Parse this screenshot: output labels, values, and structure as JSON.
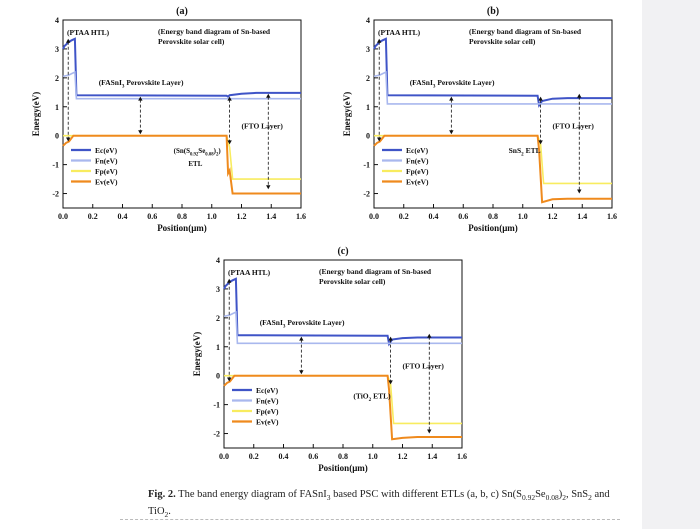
{
  "colors": {
    "ec": "#3f54c7",
    "fn": "#a9b8ee",
    "fp": "#f8ec5f",
    "ev": "#ef8a1d",
    "axis": "#111111",
    "page_bg": "#ffffff",
    "side_bg": "#f1f1f3"
  },
  "chart_data": [
    {
      "type": "line",
      "panel": "(a)",
      "title": "(Energy band diagram of Sn-based Perovskite solar cell)",
      "xlabel": "Position(μm)",
      "ylabel": "Energy(eV)",
      "xlim": [
        0,
        1.6
      ],
      "ylim": [
        -2.5,
        4
      ],
      "xticks": [
        "0.0",
        "0.2",
        "0.4",
        "0.6",
        "0.8",
        "1.0",
        "1.2",
        "1.4",
        "1.6"
      ],
      "yticks": [
        "-2",
        "-1",
        "0",
        "1",
        "2",
        "3",
        "4"
      ],
      "legend": [
        "Ec(eV)",
        "Fn(eV)",
        "Fp(eV)",
        "Ev(eV)"
      ],
      "annotations": {
        "htl": "(PTAA HTL)",
        "perovskite_pre": "(FASnI",
        "perovskite_sub": "3",
        "perovskite_post": " Perovskite Layer)",
        "fto": "(FTO Layer)",
        "etl_a": "(Sn(S",
        "etl_b": "0.92",
        "etl_c": "Se",
        "etl_d": "0.08",
        "etl_e": ")",
        "etl_f": "2",
        "etl_g": ")",
        "etl2": "ETL"
      },
      "series": [
        {
          "name": "Ec(eV)",
          "x": [
            0,
            0.01,
            0.02,
            0.03,
            0.04,
            0.06,
            0.08,
            0.09,
            1.1,
            1.11,
            1.12,
            1.2,
            1.3,
            1.6
          ],
          "y": [
            3.0,
            3.1,
            3.15,
            3.2,
            3.25,
            3.3,
            3.35,
            1.4,
            1.38,
            1.35,
            1.4,
            1.45,
            1.48,
            1.48
          ]
        },
        {
          "name": "Fn(eV)",
          "x": [
            0,
            0.04,
            0.06,
            0.08,
            0.09,
            1.6
          ],
          "y": [
            2.05,
            2.1,
            2.15,
            2.2,
            1.28,
            1.28
          ]
        },
        {
          "name": "Fp(eV)",
          "x": [
            0,
            0.07,
            1.1,
            1.12,
            1.14,
            1.6
          ],
          "y": [
            0.0,
            0.0,
            0.0,
            -0.4,
            -1.5,
            -1.5
          ]
        },
        {
          "name": "Ev(eV)",
          "x": [
            0,
            0.01,
            0.02,
            0.04,
            0.07,
            1.1,
            1.11,
            1.12,
            1.14,
            1.6
          ],
          "y": [
            -0.35,
            -0.3,
            -0.25,
            -0.2,
            0.0,
            0.0,
            -1.3,
            -1.2,
            -2.0,
            -2.0
          ]
        }
      ]
    },
    {
      "type": "line",
      "panel": "(b)",
      "title": "(Energy band diagram of Sn-based Perovskite solar cell)",
      "xlabel": "Position(μm)",
      "ylabel": "Energy(eV)",
      "xlim": [
        0,
        1.6
      ],
      "ylim": [
        -2.5,
        4
      ],
      "xticks": [
        "0.0",
        "0.2",
        "0.4",
        "0.6",
        "0.8",
        "1.0",
        "1.2",
        "1.4",
        "1.6"
      ],
      "yticks": [
        "-2",
        "-1",
        "0",
        "1",
        "2",
        "3",
        "4"
      ],
      "legend": [
        "Ec(eV)",
        "Fn(eV)",
        "Fp(eV)",
        "Ev(eV)"
      ],
      "annotations": {
        "htl": "(PTAA HTL)",
        "perovskite_pre": "(FASnI",
        "perovskite_sub": "3",
        "perovskite_post": " Perovskite Layer)",
        "fto": "(FTO Layer)",
        "etl_a": "SnS",
        "etl_b": "2",
        "etl_c": " ETL"
      },
      "series": [
        {
          "name": "Ec(eV)",
          "x": [
            0,
            0.01,
            0.02,
            0.04,
            0.06,
            0.08,
            0.09,
            1.1,
            1.11,
            1.13,
            1.2,
            1.3,
            1.6
          ],
          "y": [
            3.0,
            3.1,
            3.15,
            3.25,
            3.3,
            3.35,
            1.4,
            1.38,
            1.05,
            1.2,
            1.28,
            1.3,
            1.3
          ]
        },
        {
          "name": "Fn(eV)",
          "x": [
            0,
            0.04,
            0.06,
            0.08,
            0.09,
            1.6
          ],
          "y": [
            2.05,
            2.1,
            2.15,
            2.2,
            1.1,
            1.1
          ]
        },
        {
          "name": "Fp(eV)",
          "x": [
            0,
            0.07,
            1.1,
            1.12,
            1.14,
            1.6
          ],
          "y": [
            0.0,
            0.0,
            0.0,
            -0.3,
            -1.65,
            -1.65
          ]
        },
        {
          "name": "Ev(eV)",
          "x": [
            0,
            0.01,
            0.02,
            0.04,
            0.07,
            1.1,
            1.11,
            1.13,
            1.2,
            1.3,
            1.6
          ],
          "y": [
            -0.35,
            -0.3,
            -0.25,
            -0.2,
            0.0,
            0.0,
            -0.5,
            -2.3,
            -2.2,
            -2.18,
            -2.18
          ]
        }
      ]
    },
    {
      "type": "line",
      "panel": "(c)",
      "title": "(Energy band diagram of Sn-based Perovskite solar cell)",
      "xlabel": "Position(μm)",
      "ylabel": "Energy(eV)",
      "xlim": [
        0,
        1.6
      ],
      "ylim": [
        -2.5,
        4
      ],
      "xticks": [
        "0.0",
        "0.2",
        "0.4",
        "0.6",
        "0.8",
        "1.0",
        "1.2",
        "1.4",
        "1.6"
      ],
      "yticks": [
        "-2",
        "-1",
        "0",
        "1",
        "2",
        "3",
        "4"
      ],
      "legend": [
        "Ec(eV)",
        "Fn(eV)",
        "Fp(eV)",
        "Ev(eV)"
      ],
      "annotations": {
        "htl": "(PTAA HTL)",
        "perovskite_pre": "(FASnI",
        "perovskite_sub": "3",
        "perovskite_post": " Perovskite Layer)",
        "fto": "(FTO Layer)",
        "etl_a": "(TiO",
        "etl_b": "2",
        "etl_c": " ETL)"
      },
      "series": [
        {
          "name": "Ec(eV)",
          "x": [
            0,
            0.01,
            0.02,
            0.04,
            0.06,
            0.08,
            0.09,
            1.1,
            1.11,
            1.13,
            1.2,
            1.3,
            1.6
          ],
          "y": [
            3.0,
            3.1,
            3.15,
            3.25,
            3.3,
            3.35,
            1.4,
            1.38,
            1.1,
            1.25,
            1.3,
            1.32,
            1.32
          ]
        },
        {
          "name": "Fn(eV)",
          "x": [
            0,
            0.04,
            0.06,
            0.08,
            0.09,
            1.6
          ],
          "y": [
            2.05,
            2.1,
            2.15,
            2.2,
            1.12,
            1.12
          ]
        },
        {
          "name": "Fp(eV)",
          "x": [
            0,
            0.07,
            1.1,
            1.12,
            1.14,
            1.6
          ],
          "y": [
            0.0,
            0.0,
            0.0,
            -0.3,
            -1.65,
            -1.65
          ]
        },
        {
          "name": "Ev(eV)",
          "x": [
            0,
            0.01,
            0.02,
            0.04,
            0.07,
            1.1,
            1.11,
            1.13,
            1.2,
            1.3,
            1.6
          ],
          "y": [
            -0.35,
            -0.3,
            -0.25,
            -0.2,
            0.0,
            0.0,
            -0.5,
            -2.2,
            -2.15,
            -2.12,
            -2.12
          ]
        }
      ]
    }
  ],
  "caption": {
    "lead": "Fig. 2.",
    "p1": " The band energy diagram of FASnI",
    "s1": "3",
    "p2": " based PSC with different ETLs (a, b, c) Sn(S",
    "s2": "0.92",
    "p3": "Se",
    "s3": "0.08",
    "p4": ")",
    "s4": "2",
    "p5": ", SnS",
    "s5": "2",
    "p6": " and TiO",
    "s6": "2",
    "p7": "."
  }
}
